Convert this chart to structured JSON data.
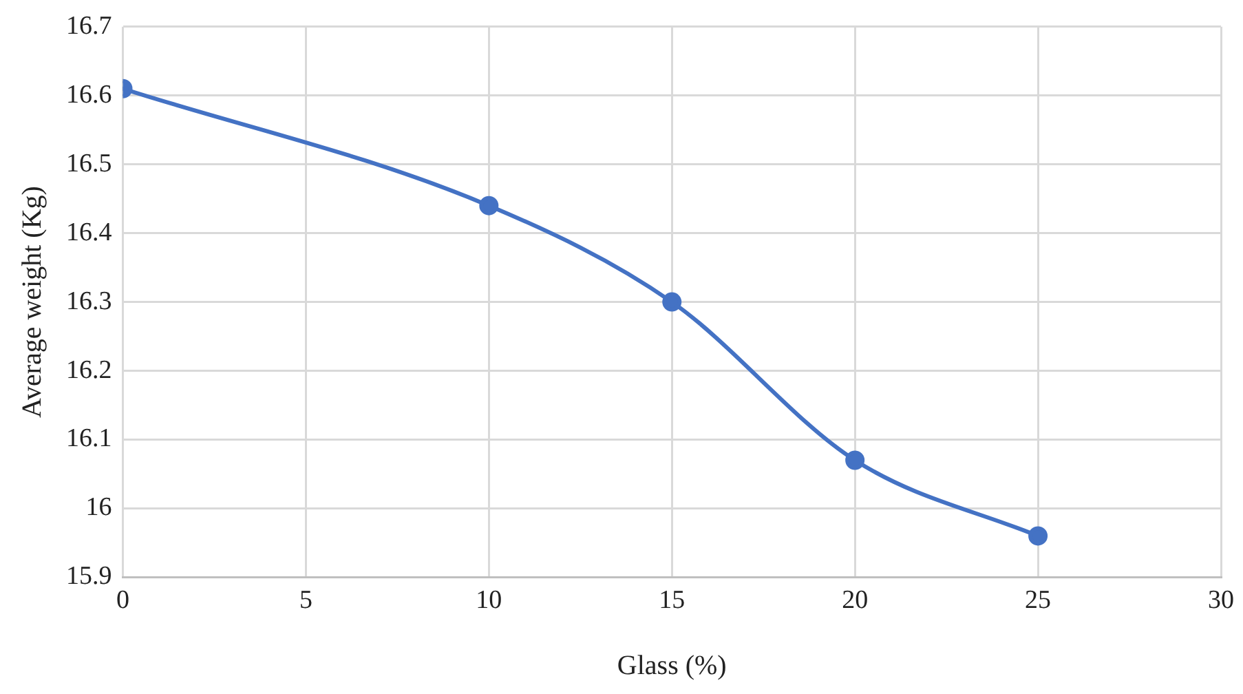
{
  "chart_data": {
    "type": "line",
    "xlabel": "Glass (%)",
    "ylabel": "Average weight (Kg)",
    "x": [
      0,
      10,
      15,
      20,
      25
    ],
    "series": [
      {
        "color": "#4472c4",
        "values": [
          16.61,
          16.44,
          16.3,
          16.07,
          15.96
        ]
      }
    ],
    "xlim": [
      0,
      30
    ],
    "xticks": [
      0,
      5,
      10,
      15,
      20,
      25,
      30
    ],
    "ylim": [
      15.9,
      16.7
    ],
    "yticks": [
      15.9,
      16,
      16.1,
      16.2,
      16.3,
      16.4,
      16.5,
      16.6,
      16.7
    ],
    "grid": true,
    "marker": "circle",
    "line_style": "solid",
    "legend": false
  }
}
